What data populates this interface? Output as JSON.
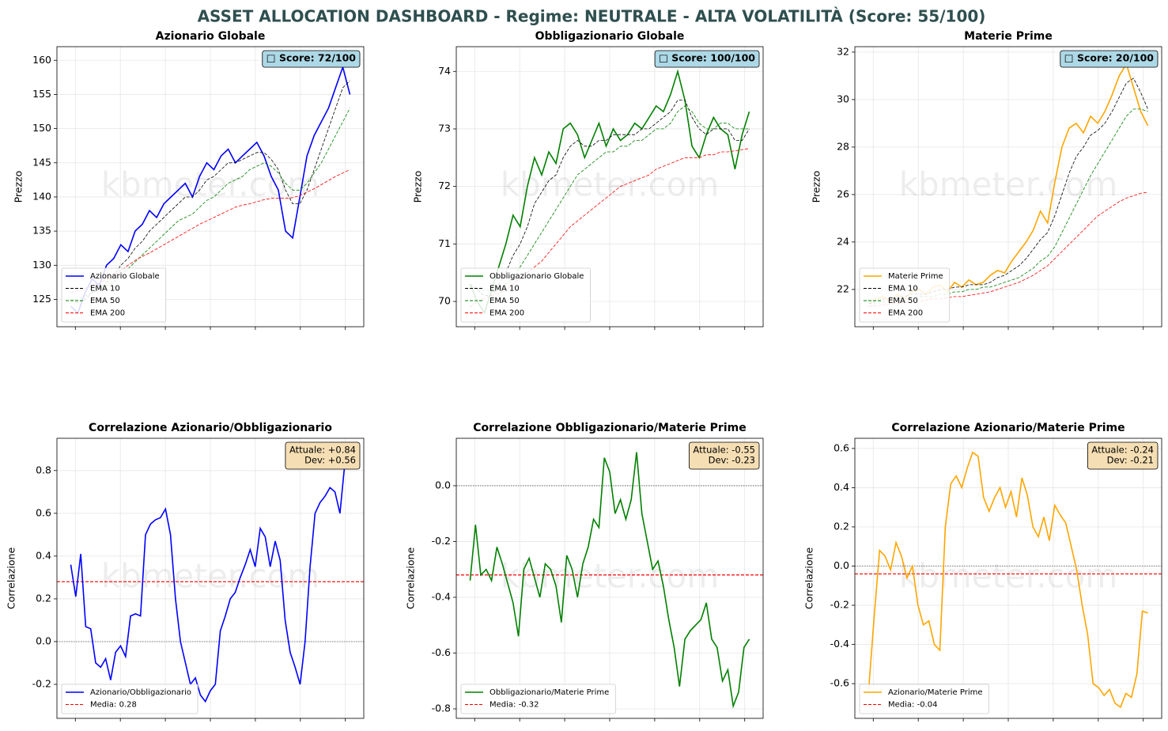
{
  "title": "ASSET ALLOCATION DASHBOARD - Regime: NEUTRALE - ALTA VOLATILITÀ (Score: 55/100)",
  "chart_data": [
    {
      "type": "line",
      "title": "Azionario Globale",
      "ylabel": "Prezzo",
      "watermark": "kbmeter.com",
      "badge": [
        "□ Score: 72/100"
      ],
      "badge_color": "#add8e6",
      "ylim": [
        121,
        162
      ],
      "yticks": [
        125,
        130,
        135,
        140,
        145,
        150,
        155,
        160
      ],
      "grid": true,
      "legend": "lower left",
      "series": [
        {
          "name": "Azionario Globale",
          "color": "#0000ff",
          "style": "solid",
          "values": [
            124,
            123,
            126,
            128,
            127,
            130,
            131,
            133,
            132,
            135,
            136,
            138,
            137,
            139,
            140,
            141,
            142,
            140,
            143,
            145,
            144,
            146,
            147,
            145,
            146,
            147,
            148,
            146,
            143,
            141,
            135,
            134,
            140,
            146,
            149,
            151,
            153,
            156,
            159,
            155
          ]
        },
        {
          "name": "EMA 10",
          "color": "#000000",
          "style": "dashed",
          "values": [
            125,
            124.5,
            125,
            126,
            126.5,
            127.5,
            128.5,
            130,
            131,
            132.5,
            133.5,
            135,
            136,
            137,
            138,
            139,
            140,
            140,
            141,
            142.5,
            143,
            144,
            145,
            145,
            145.5,
            146,
            146.5,
            146.5,
            145.5,
            144,
            141,
            139,
            139,
            141,
            144,
            147,
            150,
            153,
            156,
            157
          ]
        },
        {
          "name": "EMA 50",
          "color": "#008000",
          "style": "dashed",
          "values": [
            125,
            125,
            125.5,
            126,
            126.5,
            127,
            127.5,
            128.5,
            129.5,
            130.5,
            131.5,
            132.5,
            133.5,
            134.5,
            135.5,
            136.5,
            137,
            137.5,
            138.5,
            139.5,
            140,
            141,
            142,
            142.5,
            143,
            144,
            144.5,
            145,
            144.5,
            143.5,
            142,
            141,
            141,
            142,
            143.5,
            145,
            147,
            149,
            151,
            153
          ]
        },
        {
          "name": "EMA 200",
          "color": "#ff0000",
          "style": "dashed",
          "values": [
            126,
            126.3,
            126.6,
            127,
            127.4,
            127.9,
            128.5,
            129.2,
            130,
            130.7,
            131.3,
            131.8,
            132.4,
            133,
            133.6,
            134.2,
            134.8,
            135.4,
            136,
            136.5,
            137,
            137.5,
            138,
            138.5,
            138.8,
            139,
            139.3,
            139.6,
            139.8,
            139.8,
            139.8,
            139.9,
            140.2,
            140.7,
            141.2,
            141.8,
            142.4,
            143,
            143.5,
            144
          ]
        }
      ]
    },
    {
      "type": "line",
      "title": "Obbligazionario Globale",
      "ylabel": "Prezzo",
      "watermark": "kbmeter.com",
      "badge": [
        "□ Score: 100/100"
      ],
      "badge_color": "#add8e6",
      "ylim": [
        69.56,
        74.43
      ],
      "yticks": [
        70,
        71,
        72,
        73,
        74
      ],
      "grid": true,
      "legend": "lower left",
      "series": [
        {
          "name": "Obbligazionario Globale",
          "color": "#008000",
          "style": "solid",
          "values": [
            70.3,
            70.0,
            69.8,
            70.2,
            70.6,
            71.0,
            71.5,
            71.3,
            72.0,
            72.5,
            72.2,
            72.6,
            72.4,
            73.0,
            73.1,
            72.9,
            72.5,
            72.8,
            73.1,
            72.7,
            73.0,
            72.8,
            72.9,
            73.1,
            73.0,
            73.2,
            73.4,
            73.3,
            73.6,
            74.0,
            73.5,
            72.7,
            72.5,
            72.9,
            73.2,
            73.0,
            72.9,
            72.3,
            72.9,
            73.3
          ]
        },
        {
          "name": "EMA 10",
          "color": "#000000",
          "style": "dashed",
          "values": [
            70.3,
            70.2,
            70.1,
            70.1,
            70.3,
            70.5,
            70.8,
            71.0,
            71.3,
            71.7,
            71.9,
            72.1,
            72.2,
            72.5,
            72.7,
            72.8,
            72.7,
            72.7,
            72.8,
            72.8,
            72.9,
            72.9,
            72.9,
            72.9,
            73.0,
            73.0,
            73.1,
            73.2,
            73.3,
            73.5,
            73.5,
            73.2,
            73.0,
            72.9,
            73.0,
            73.0,
            73.0,
            72.8,
            72.8,
            73.0
          ]
        },
        {
          "name": "EMA 50",
          "color": "#008000",
          "style": "dashed",
          "values": [
            70.3,
            70.2,
            70.2,
            70.2,
            70.2,
            70.3,
            70.4,
            70.6,
            70.8,
            71.0,
            71.2,
            71.4,
            71.6,
            71.8,
            72.0,
            72.2,
            72.3,
            72.4,
            72.5,
            72.6,
            72.6,
            72.7,
            72.7,
            72.8,
            72.8,
            72.9,
            73.0,
            73.0,
            73.1,
            73.3,
            73.4,
            73.3,
            73.1,
            73.0,
            73.0,
            73.1,
            73.1,
            73.0,
            73.0,
            73.0
          ]
        },
        {
          "name": "EMA 200",
          "color": "#ff0000",
          "style": "dashed",
          "values": [
            69.9,
            70.0,
            70.05,
            70.1,
            70.15,
            70.2,
            70.3,
            70.4,
            70.5,
            70.6,
            70.7,
            70.85,
            71.0,
            71.15,
            71.3,
            71.4,
            71.5,
            71.6,
            71.7,
            71.8,
            71.9,
            72.0,
            72.05,
            72.1,
            72.15,
            72.2,
            72.3,
            72.35,
            72.4,
            72.45,
            72.5,
            72.5,
            72.5,
            72.55,
            72.55,
            72.6,
            72.6,
            72.62,
            72.64,
            72.66
          ]
        }
      ]
    },
    {
      "type": "line",
      "title": "Materie Prime",
      "ylabel": "Prezzo",
      "watermark": "kbmeter.com",
      "badge": [
        "□ Score: 20/100"
      ],
      "badge_color": "#add8e6",
      "ylim": [
        20.43,
        32.23
      ],
      "yticks": [
        22,
        24,
        26,
        28,
        30,
        32
      ],
      "grid": true,
      "legend": "lower left",
      "series": [
        {
          "name": "Materie Prime",
          "color": "#ffa500",
          "style": "solid",
          "values": [
            21.4,
            21.6,
            21.7,
            21.5,
            21.8,
            21.6,
            21.9,
            22.0,
            21.8,
            22.1,
            22.2,
            21.9,
            22.3,
            22.1,
            22.4,
            22.2,
            22.3,
            22.6,
            22.8,
            22.7,
            23.2,
            23.6,
            24.0,
            24.5,
            25.3,
            24.8,
            26.5,
            28.0,
            28.8,
            29.0,
            28.6,
            29.3,
            29.0,
            29.5,
            30.2,
            31.0,
            31.5,
            30.5,
            29.5,
            28.9
          ]
        },
        {
          "name": "EMA 10",
          "color": "#000000",
          "style": "dashed",
          "values": [
            21.4,
            21.5,
            21.6,
            21.6,
            21.7,
            21.7,
            21.8,
            21.8,
            21.8,
            21.9,
            22.0,
            22.0,
            22.1,
            22.1,
            22.2,
            22.2,
            22.2,
            22.3,
            22.5,
            22.6,
            22.8,
            23.0,
            23.3,
            23.7,
            24.1,
            24.4,
            25.1,
            26.0,
            26.9,
            27.6,
            28.0,
            28.5,
            28.7,
            29.0,
            29.5,
            30.1,
            30.7,
            30.9,
            30.3,
            29.6
          ]
        },
        {
          "name": "EMA 50",
          "color": "#008000",
          "style": "dashed",
          "values": [
            21.4,
            21.4,
            21.5,
            21.5,
            21.5,
            21.6,
            21.6,
            21.7,
            21.7,
            21.7,
            21.8,
            21.8,
            21.9,
            21.9,
            22.0,
            22.0,
            22.1,
            22.1,
            22.2,
            22.3,
            22.4,
            22.5,
            22.7,
            22.9,
            23.2,
            23.4,
            23.8,
            24.4,
            25.0,
            25.6,
            26.2,
            26.8,
            27.3,
            27.8,
            28.3,
            28.8,
            29.3,
            29.6,
            29.6,
            29.5
          ]
        },
        {
          "name": "EMA 200",
          "color": "#ff0000",
          "style": "dashed",
          "values": [
            21.3,
            21.3,
            21.35,
            21.4,
            21.4,
            21.45,
            21.5,
            21.5,
            21.55,
            21.6,
            21.6,
            21.65,
            21.7,
            21.7,
            21.75,
            21.8,
            21.85,
            21.9,
            22.0,
            22.1,
            22.2,
            22.3,
            22.45,
            22.6,
            22.8,
            23.0,
            23.3,
            23.6,
            23.9,
            24.2,
            24.5,
            24.8,
            25.1,
            25.3,
            25.5,
            25.7,
            25.85,
            25.95,
            26.05,
            26.1
          ]
        }
      ]
    },
    {
      "type": "line",
      "title": "Correlazione Azionario/Obbligazionario",
      "ylabel": "Correlazione",
      "watermark": "kbmeter.com",
      "badge": [
        "Attuale: +0.84",
        "Dev: +0.56"
      ],
      "badge_color": "#f5deb3",
      "ylim": [
        -0.359,
        0.951
      ],
      "yticks": [
        -0.2,
        {
          "value": 0,
          "label": "0.0"
        },
        0.2,
        0.4,
        0.6,
        0.8
      ],
      "grid": true,
      "legend": "lower left",
      "reference_line": 0,
      "mean": {
        "value": 0.28,
        "label": "Media: 0.28",
        "color": "#ff0000"
      },
      "series": [
        {
          "name": "Azionario/Obbligazionario",
          "color": "#0000ff",
          "style": "solid",
          "values": [
            0.36,
            0.21,
            0.41,
            0.07,
            0.06,
            -0.1,
            -0.12,
            -0.08,
            -0.18,
            -0.05,
            -0.02,
            -0.07,
            0.12,
            0.13,
            0.12,
            0.5,
            0.55,
            0.57,
            0.58,
            0.62,
            0.5,
            0.2,
            0.0,
            -0.1,
            -0.2,
            -0.17,
            -0.25,
            -0.28,
            -0.23,
            -0.2,
            0.05,
            0.12,
            0.2,
            0.23,
            0.3,
            0.36,
            0.43,
            0.35,
            0.53,
            0.49,
            0.35,
            0.47,
            0.38,
            0.1,
            -0.05,
            -0.12,
            -0.2,
            0.0,
            0.35,
            0.6,
            0.65,
            0.68,
            0.72,
            0.7,
            0.6,
            0.84,
            0.84
          ]
        }
      ]
    },
    {
      "type": "line",
      "title": "Correlazione Obbligazionario/Materie Prime",
      "ylabel": "Correlazione",
      "watermark": "kbmeter.com",
      "badge": [
        "Attuale: -0.55",
        "Dev: -0.23"
      ],
      "badge_color": "#f5deb3",
      "ylim": [
        -0.834,
        0.17
      ],
      "yticks": [
        -0.8,
        -0.6,
        -0.4,
        -0.2,
        {
          "value": 0,
          "label": "0.0"
        }
      ],
      "grid": true,
      "legend": "lower left",
      "reference_line": 0,
      "mean": {
        "value": -0.32,
        "label": "Media: -0.32",
        "color": "#ff0000"
      },
      "series": [
        {
          "name": "Obbligazionario/Materie Prime",
          "color": "#008000",
          "style": "solid",
          "values": [
            -0.34,
            -0.14,
            -0.32,
            -0.3,
            -0.34,
            -0.22,
            -0.28,
            -0.35,
            -0.42,
            -0.54,
            -0.3,
            -0.26,
            -0.33,
            -0.4,
            -0.28,
            -0.3,
            -0.36,
            -0.49,
            -0.25,
            -0.3,
            -0.4,
            -0.28,
            -0.22,
            -0.12,
            -0.15,
            0.1,
            0.05,
            -0.1,
            -0.05,
            -0.12,
            -0.05,
            0.12,
            -0.1,
            -0.2,
            -0.3,
            -0.27,
            -0.36,
            -0.48,
            -0.58,
            -0.72,
            -0.55,
            -0.52,
            -0.5,
            -0.48,
            -0.42,
            -0.55,
            -0.58,
            -0.7,
            -0.66,
            -0.79,
            -0.74,
            -0.58,
            -0.55
          ]
        }
      ]
    },
    {
      "type": "line",
      "title": "Correlazione Azionario/Materie Prime",
      "ylabel": "Correlazione",
      "watermark": "kbmeter.com",
      "badge": [
        "Attuale: -0.24",
        "Dev: -0.21"
      ],
      "badge_color": "#f5deb3",
      "ylim": [
        -0.777,
        0.652
      ],
      "yticks": [
        -0.6,
        -0.4,
        -0.2,
        {
          "value": 0,
          "label": "0.0"
        },
        0.2,
        0.4,
        0.6
      ],
      "grid": true,
      "legend": "lower left",
      "reference_line": 0,
      "mean": {
        "value": -0.04,
        "label": "Media: -0.04",
        "color": "#ff0000"
      },
      "series": [
        {
          "name": "Azionario/Materie Prime",
          "color": "#ffa500",
          "style": "solid",
          "values": [
            -0.63,
            -0.26,
            0.08,
            0.05,
            -0.02,
            0.12,
            0.05,
            -0.06,
            0.0,
            -0.2,
            -0.3,
            -0.28,
            -0.4,
            -0.43,
            0.2,
            0.42,
            0.46,
            0.4,
            0.5,
            0.58,
            0.56,
            0.35,
            0.28,
            0.35,
            0.4,
            0.3,
            0.38,
            0.25,
            0.45,
            0.36,
            0.2,
            0.15,
            0.25,
            0.13,
            0.31,
            0.26,
            0.22,
            0.1,
            -0.02,
            -0.2,
            -0.35,
            -0.6,
            -0.62,
            -0.66,
            -0.63,
            -0.7,
            -0.72,
            -0.65,
            -0.67,
            -0.55,
            -0.23,
            -0.24
          ]
        }
      ]
    }
  ]
}
